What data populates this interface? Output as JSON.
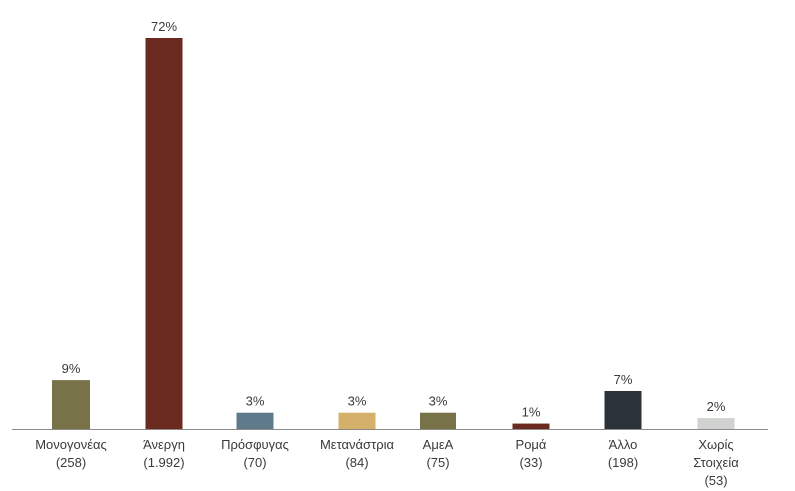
{
  "chart_data": {
    "type": "bar",
    "title": "",
    "xlabel": "",
    "ylabel": "",
    "ylim": [
      0,
      72
    ],
    "grid": false,
    "legend": "none",
    "categories": [
      {
        "lines": [
          "Μονογονέας",
          "(258)"
        ]
      },
      {
        "lines": [
          "Άνεργη",
          "(1.992)"
        ]
      },
      {
        "lines": [
          "Πρόσφυγας",
          "(70)"
        ]
      },
      {
        "lines": [
          "Μετανάστρια",
          "(84)"
        ]
      },
      {
        "lines": [
          "ΑμεΑ",
          "(75)"
        ]
      },
      {
        "lines": [
          "Ρομά",
          "(33)"
        ]
      },
      {
        "lines": [
          "Άλλο",
          "(198)"
        ]
      },
      {
        "lines": [
          "Χωρίς",
          "Στοιχεία",
          "(53)"
        ]
      }
    ],
    "values": [
      9,
      72,
      3,
      3,
      3,
      1,
      7,
      2
    ],
    "value_labels": [
      "9%",
      "72%",
      "3%",
      "3%",
      "3%",
      "1%",
      "7%",
      "2%"
    ],
    "colors": [
      "#777248",
      "#6b2a1f",
      "#5f7a8a",
      "#d4b06a",
      "#777248",
      "#6b2a1f",
      "#2b3238",
      "#d0d2d0"
    ],
    "axis_color": "#8a8a8a"
  }
}
